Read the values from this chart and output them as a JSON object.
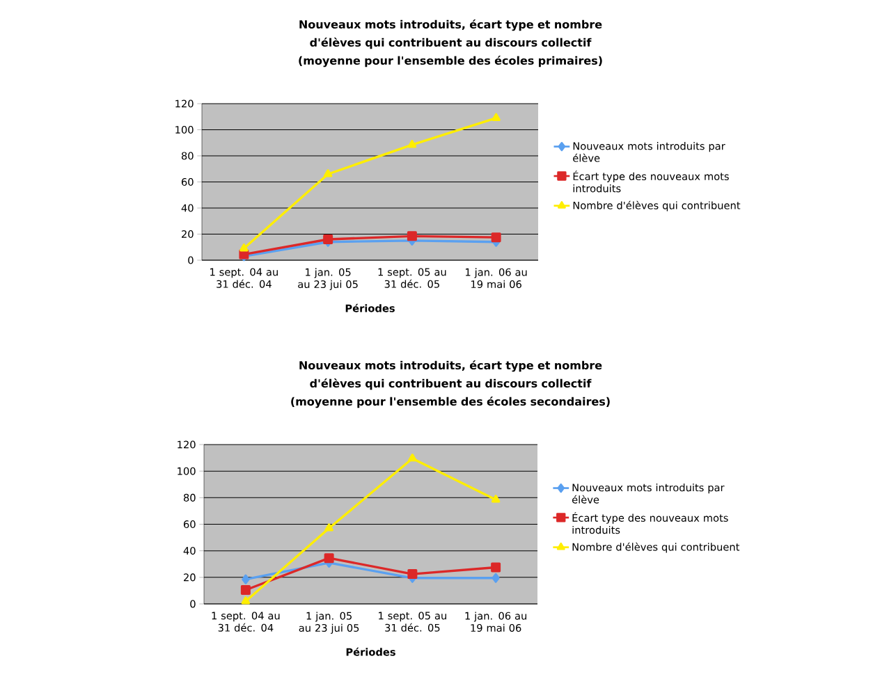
{
  "chart_data": [
    {
      "type": "line",
      "title": "Nouveaux mots introduits, écart type et nombre d'élèves qui contribuent au discours collectif",
      "subtitle": "(moyenne pour l'ensemble des écoles primaires)",
      "xlabel": "Périodes",
      "categories": [
        "1 sept. 04 au 31 déc. 04",
        "1 jan. 05 au 23 jui 05",
        "1 sept. 05 au 31 déc. 05",
        "1 jan. 06 au 19 mai 06"
      ],
      "series": [
        {
          "name": "Nouveaux mots introduits par élève",
          "color": "#5aa0f0",
          "marker": "diamond",
          "values": [
            3,
            14,
            15,
            14
          ]
        },
        {
          "name": "Écart type des nouveaux mots introduits",
          "color": "#dc2828",
          "marker": "square",
          "values": [
            4.5,
            16,
            18.5,
            17.5
          ]
        },
        {
          "name": "Nombre d'élèves qui contribuent",
          "color": "#ffee00",
          "marker": "triangle",
          "values": [
            9,
            66,
            88.5,
            109
          ]
        }
      ],
      "ylim": [
        0,
        120
      ],
      "yticks": [
        0,
        20,
        40,
        60,
        80,
        100,
        120
      ],
      "grid": "y",
      "legend": "right"
    },
    {
      "type": "line",
      "title": "Nouveaux mots introduits, écart type et nombre d'élèves qui contribuent au discours collectif",
      "subtitle": "(moyenne pour l'ensemble des écoles secondaires)",
      "xlabel": "Périodes",
      "categories": [
        "1 sept. 04 au 31 déc. 04",
        "1 jan. 05 au 23 jui 05",
        "1 sept. 05 au 31 déc. 05",
        "1 jan. 06 au 19 mai 06"
      ],
      "series": [
        {
          "name": "Nouveaux mots introduits par élève",
          "color": "#5aa0f0",
          "marker": "diamond",
          "values": [
            18.5,
            31,
            19.5,
            19.5
          ]
        },
        {
          "name": "Écart type des nouveaux mots introduits",
          "color": "#dc2828",
          "marker": "square",
          "values": [
            10.5,
            34.5,
            22.5,
            27.5
          ]
        },
        {
          "name": "Nombre d'élèves qui contribuent",
          "color": "#ffee00",
          "marker": "triangle",
          "values": [
            2,
            57,
            109.5,
            78.5
          ]
        }
      ],
      "ylim": [
        0,
        120
      ],
      "yticks": [
        0,
        20,
        40,
        60,
        80,
        100,
        120
      ],
      "grid": "y",
      "legend": "right"
    }
  ]
}
